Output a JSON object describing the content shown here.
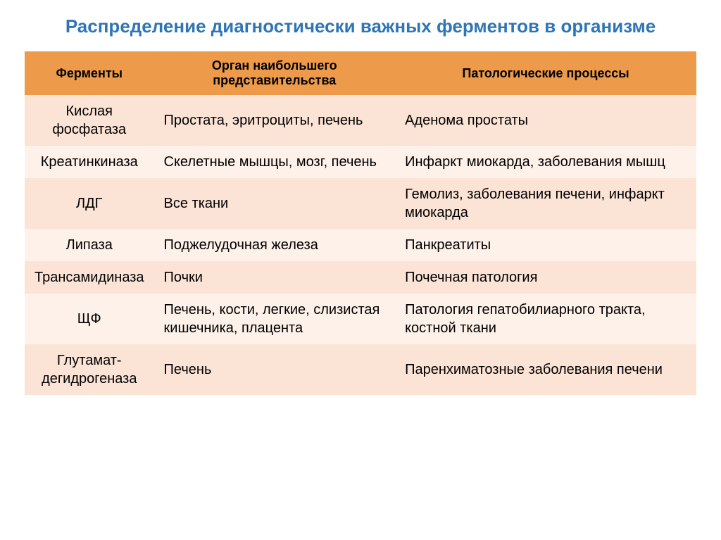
{
  "title": "Распределение диагностически важных ферментов в организме",
  "title_color": "#2e75b6",
  "title_fontsize": 26,
  "table": {
    "header_bg": "#ed9a4a",
    "header_text_color": "#000000",
    "header_fontsize": 18,
    "cell_fontsize": 20,
    "cell_text_color": "#000000",
    "row_colors": [
      "#fbe3d6",
      "#fdf1ea"
    ],
    "columns": [
      {
        "label": "Ферменты",
        "width": "19%"
      },
      {
        "label": "Орган наибольшего представительства",
        "width": "36%"
      },
      {
        "label": "Патологические процессы",
        "width": "45%"
      }
    ],
    "rows": [
      {
        "enzyme": "Кислая фосфатаза",
        "organ": "Простата, эритроциты, печень",
        "process": "Аденома простаты"
      },
      {
        "enzyme": "Креатинкиназа",
        "organ": "Скелетные мышцы, мозг, печень",
        "process": "Инфаркт миокарда, заболевания мышц"
      },
      {
        "enzyme": "ЛДГ",
        "organ": "Все ткани",
        "process": "Гемолиз, заболевания печени, инфаркт миокарда"
      },
      {
        "enzyme": "Липаза",
        "organ": "Поджелудочная железа",
        "process": "Панкреатиты"
      },
      {
        "enzyme": "Трансамидиназа",
        "organ": "Почки",
        "process": "Почечная патология"
      },
      {
        "enzyme": "ЩФ",
        "organ": "Печень, кости, легкие, слизистая кишечника, плацента",
        "process": "Патология гепатобилиарного тракта, костной ткани"
      },
      {
        "enzyme": "Глутамат-дегидрогеназа",
        "organ": "Печень",
        "process": "Паренхиматозные заболевания печени"
      }
    ]
  }
}
